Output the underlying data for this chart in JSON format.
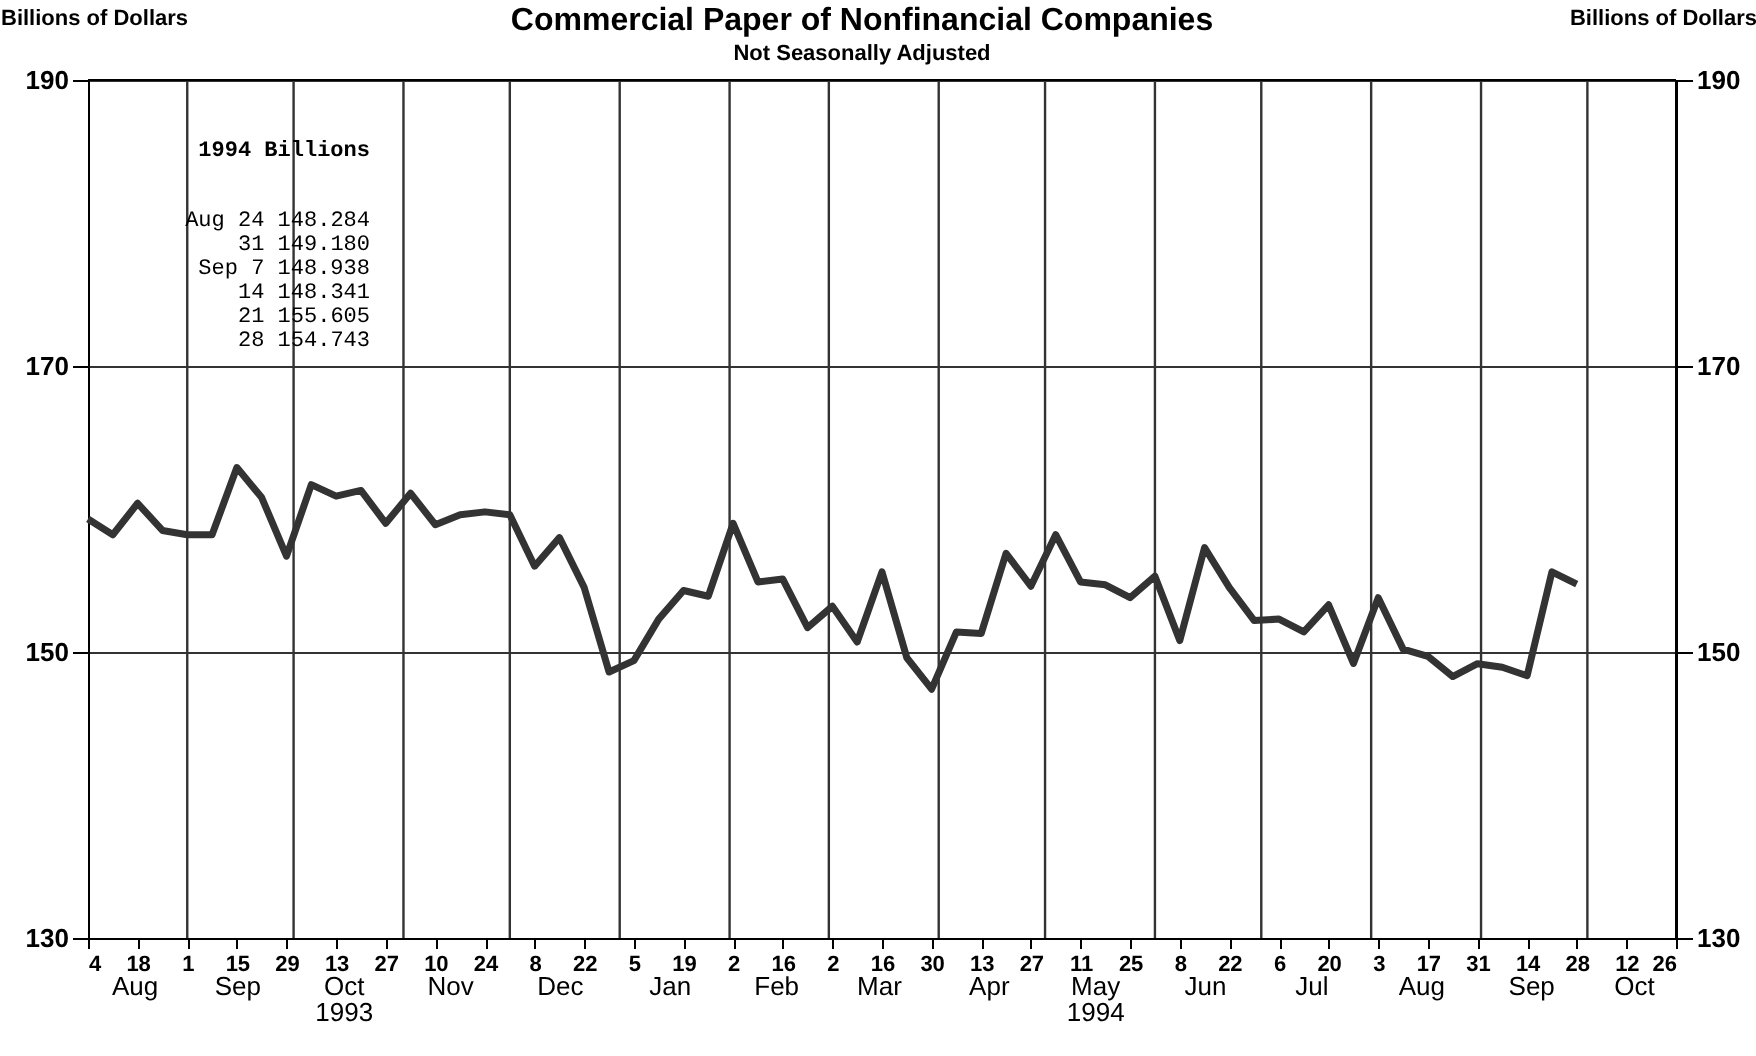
{
  "chart_data": {
    "type": "line",
    "title": "Commercial Paper of Nonfinancial Companies",
    "subtitle": "Not Seasonally Adjusted",
    "ylabel": "Billions of Dollars",
    "y2label": "Billions of Dollars",
    "x": [
      "1993-08-04",
      "1993-08-11",
      "1993-08-18",
      "1993-08-25",
      "1993-09-01",
      "1993-09-08",
      "1993-09-15",
      "1993-09-22",
      "1993-09-29",
      "1993-10-06",
      "1993-10-13",
      "1993-10-20",
      "1993-10-27",
      "1993-11-03",
      "1993-11-10",
      "1993-11-17",
      "1993-11-24",
      "1993-12-01",
      "1993-12-08",
      "1993-12-15",
      "1993-12-22",
      "1993-12-29",
      "1994-01-05",
      "1994-01-12",
      "1994-01-19",
      "1994-01-26",
      "1994-02-02",
      "1994-02-09",
      "1994-02-16",
      "1994-02-23",
      "1994-03-02",
      "1994-03-09",
      "1994-03-16",
      "1994-03-23",
      "1994-03-30",
      "1994-04-06",
      "1994-04-13",
      "1994-04-20",
      "1994-04-27",
      "1994-05-04",
      "1994-05-11",
      "1994-05-18",
      "1994-05-25",
      "1994-06-01",
      "1994-06-08",
      "1994-06-15",
      "1994-06-22",
      "1994-06-29",
      "1994-07-06",
      "1994-07-13",
      "1994-07-20",
      "1994-07-27",
      "1994-08-03",
      "1994-08-10",
      "1994-08-17",
      "1994-08-24",
      "1994-08-31",
      "1994-09-07",
      "1994-09-14",
      "1994-09-21",
      "1994-09-28"
    ],
    "series": [
      {
        "color": "#333333",
        "values": [
          159.3,
          158.2,
          160.4,
          158.5,
          158.2,
          158.2,
          162.9,
          160.8,
          156.7,
          161.7,
          160.9,
          161.3,
          159.0,
          161.1,
          158.9,
          159.6,
          159.8,
          159.6,
          156.0,
          158.0,
          154.5,
          148.6,
          149.4,
          152.3,
          154.3,
          153.9,
          159.0,
          154.9,
          155.1,
          151.7,
          153.2,
          150.7,
          155.6,
          149.6,
          147.4,
          151.4,
          151.3,
          156.9,
          154.6,
          158.2,
          154.9,
          154.7,
          153.8,
          155.3,
          150.8,
          157.3,
          154.5,
          152.2,
          152.3,
          151.4,
          153.3,
          149.2,
          153.8,
          150.2,
          149.7,
          148.284,
          149.18,
          148.938,
          148.341,
          155.605,
          154.743
        ]
      }
    ],
    "xlim": [
      "1993-08-04",
      "1994-10-26"
    ],
    "xticks": [
      {
        "value": "1993-08-04",
        "label": "4"
      },
      {
        "value": "1993-08-18",
        "label": "18"
      },
      {
        "value": "1993-09-01",
        "label": "1"
      },
      {
        "value": "1993-09-15",
        "label": "15"
      },
      {
        "value": "1993-09-29",
        "label": "29"
      },
      {
        "value": "1993-10-13",
        "label": "13"
      },
      {
        "value": "1993-10-27",
        "label": "27"
      },
      {
        "value": "1993-11-10",
        "label": "10"
      },
      {
        "value": "1993-11-24",
        "label": "24"
      },
      {
        "value": "1993-12-08",
        "label": "8"
      },
      {
        "value": "1993-12-22",
        "label": "22"
      },
      {
        "value": "1994-01-05",
        "label": "5"
      },
      {
        "value": "1994-01-19",
        "label": "19"
      },
      {
        "value": "1994-02-02",
        "label": "2"
      },
      {
        "value": "1994-02-16",
        "label": "16"
      },
      {
        "value": "1994-03-02",
        "label": "2"
      },
      {
        "value": "1994-03-16",
        "label": "16"
      },
      {
        "value": "1994-03-30",
        "label": "30"
      },
      {
        "value": "1994-04-13",
        "label": "13"
      },
      {
        "value": "1994-04-27",
        "label": "27"
      },
      {
        "value": "1994-05-11",
        "label": "11"
      },
      {
        "value": "1994-05-25",
        "label": "25"
      },
      {
        "value": "1994-06-08",
        "label": "8"
      },
      {
        "value": "1994-06-22",
        "label": "22"
      },
      {
        "value": "1994-07-06",
        "label": "6"
      },
      {
        "value": "1994-07-20",
        "label": "20"
      },
      {
        "value": "1994-08-03",
        "label": "3"
      },
      {
        "value": "1994-08-17",
        "label": "17"
      },
      {
        "value": "1994-08-31",
        "label": "31"
      },
      {
        "value": "1994-09-14",
        "label": "14"
      },
      {
        "value": "1994-09-28",
        "label": "28"
      },
      {
        "value": "1994-10-12",
        "label": "12"
      },
      {
        "value": "1994-10-26",
        "label": "26"
      }
    ],
    "x2lim": [
      "1993-08-04",
      "1994-10-26"
    ],
    "x2ticks": [
      {
        "value": "1993-08-17",
        "label": "Aug"
      },
      {
        "value": "1993-09-15",
        "label": "Sep"
      },
      {
        "value": "1993-10-15",
        "label": "Oct\n1993"
      },
      {
        "value": "1993-11-14",
        "label": "Nov"
      },
      {
        "value": "1993-12-15",
        "label": "Dec"
      },
      {
        "value": "1994-01-15",
        "label": "Jan"
      },
      {
        "value": "1994-02-14",
        "label": "Feb"
      },
      {
        "value": "1994-03-15",
        "label": "Mar"
      },
      {
        "value": "1994-04-15",
        "label": "Apr"
      },
      {
        "value": "1994-05-15",
        "label": "May\n1994"
      },
      {
        "value": "1994-06-15",
        "label": "Jun"
      },
      {
        "value": "1994-07-15",
        "label": "Jul"
      },
      {
        "value": "1994-08-15",
        "label": "Aug"
      },
      {
        "value": "1994-09-15",
        "label": "Sep"
      },
      {
        "value": "1994-10-14",
        "label": "Oct"
      }
    ],
    "ylim": [
      130,
      190
    ],
    "yticks": [
      130,
      150,
      170,
      190
    ],
    "y2lim": [
      130,
      190
    ],
    "y2ticks": [
      130,
      150,
      170,
      190
    ],
    "grid": "y",
    "ref_lines": [
      {
        "axis": "x",
        "value": "1993-09-01"
      },
      {
        "axis": "x",
        "value": "1993-10-01"
      },
      {
        "axis": "x",
        "value": "1993-11-01"
      },
      {
        "axis": "x",
        "value": "1993-12-01"
      },
      {
        "axis": "x",
        "value": "1994-01-01"
      },
      {
        "axis": "x",
        "value": "1994-02-01"
      },
      {
        "axis": "x",
        "value": "1994-03-01"
      },
      {
        "axis": "x",
        "value": "1994-04-01"
      },
      {
        "axis": "x",
        "value": "1994-05-01"
      },
      {
        "axis": "x",
        "value": "1994-06-01"
      },
      {
        "axis": "x",
        "value": "1994-07-01"
      },
      {
        "axis": "x",
        "value": "1994-08-01"
      },
      {
        "axis": "x",
        "value": "1994-09-01"
      },
      {
        "axis": "x",
        "value": "1994-10-01"
      }
    ],
    "annotations": [
      "1994  Billions",
      "Aug 24 148.284",
      "31 149.180",
      "Sep  7 148.938",
      "14 148.341",
      "21 155.605",
      "28 154.743"
    ]
  }
}
